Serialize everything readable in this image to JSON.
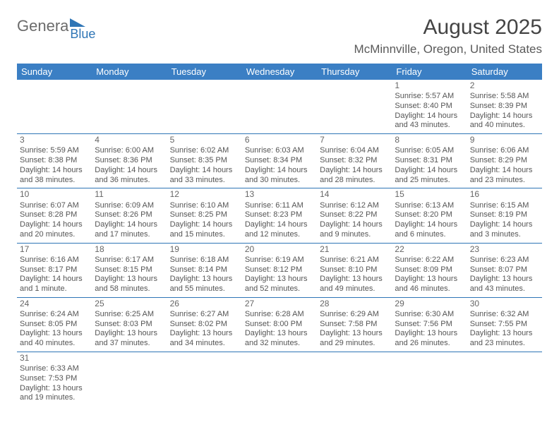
{
  "brand": {
    "word1": "Genera",
    "word2": "Blue",
    "accent_color": "#2e75b6"
  },
  "title": "August 2025",
  "location": "McMinnville, Oregon, United States",
  "header_bg": "#3b7fc4",
  "weekdays": [
    "Sunday",
    "Monday",
    "Tuesday",
    "Wednesday",
    "Thursday",
    "Friday",
    "Saturday"
  ],
  "weeks": [
    [
      null,
      null,
      null,
      null,
      null,
      {
        "d": "1",
        "sr": "5:57 AM",
        "ss": "8:40 PM",
        "dh": "14",
        "dm": "43"
      },
      {
        "d": "2",
        "sr": "5:58 AM",
        "ss": "8:39 PM",
        "dh": "14",
        "dm": "40"
      }
    ],
    [
      {
        "d": "3",
        "sr": "5:59 AM",
        "ss": "8:38 PM",
        "dh": "14",
        "dm": "38"
      },
      {
        "d": "4",
        "sr": "6:00 AM",
        "ss": "8:36 PM",
        "dh": "14",
        "dm": "36"
      },
      {
        "d": "5",
        "sr": "6:02 AM",
        "ss": "8:35 PM",
        "dh": "14",
        "dm": "33"
      },
      {
        "d": "6",
        "sr": "6:03 AM",
        "ss": "8:34 PM",
        "dh": "14",
        "dm": "30"
      },
      {
        "d": "7",
        "sr": "6:04 AM",
        "ss": "8:32 PM",
        "dh": "14",
        "dm": "28"
      },
      {
        "d": "8",
        "sr": "6:05 AM",
        "ss": "8:31 PM",
        "dh": "14",
        "dm": "25"
      },
      {
        "d": "9",
        "sr": "6:06 AM",
        "ss": "8:29 PM",
        "dh": "14",
        "dm": "23"
      }
    ],
    [
      {
        "d": "10",
        "sr": "6:07 AM",
        "ss": "8:28 PM",
        "dh": "14",
        "dm": "20"
      },
      {
        "d": "11",
        "sr": "6:09 AM",
        "ss": "8:26 PM",
        "dh": "14",
        "dm": "17"
      },
      {
        "d": "12",
        "sr": "6:10 AM",
        "ss": "8:25 PM",
        "dh": "14",
        "dm": "15"
      },
      {
        "d": "13",
        "sr": "6:11 AM",
        "ss": "8:23 PM",
        "dh": "14",
        "dm": "12"
      },
      {
        "d": "14",
        "sr": "6:12 AM",
        "ss": "8:22 PM",
        "dh": "14",
        "dm": "9"
      },
      {
        "d": "15",
        "sr": "6:13 AM",
        "ss": "8:20 PM",
        "dh": "14",
        "dm": "6"
      },
      {
        "d": "16",
        "sr": "6:15 AM",
        "ss": "8:19 PM",
        "dh": "14",
        "dm": "3"
      }
    ],
    [
      {
        "d": "17",
        "sr": "6:16 AM",
        "ss": "8:17 PM",
        "dh": "14",
        "dm": "1",
        "singular": true
      },
      {
        "d": "18",
        "sr": "6:17 AM",
        "ss": "8:15 PM",
        "dh": "13",
        "dm": "58"
      },
      {
        "d": "19",
        "sr": "6:18 AM",
        "ss": "8:14 PM",
        "dh": "13",
        "dm": "55"
      },
      {
        "d": "20",
        "sr": "6:19 AM",
        "ss": "8:12 PM",
        "dh": "13",
        "dm": "52"
      },
      {
        "d": "21",
        "sr": "6:21 AM",
        "ss": "8:10 PM",
        "dh": "13",
        "dm": "49"
      },
      {
        "d": "22",
        "sr": "6:22 AM",
        "ss": "8:09 PM",
        "dh": "13",
        "dm": "46"
      },
      {
        "d": "23",
        "sr": "6:23 AM",
        "ss": "8:07 PM",
        "dh": "13",
        "dm": "43"
      }
    ],
    [
      {
        "d": "24",
        "sr": "6:24 AM",
        "ss": "8:05 PM",
        "dh": "13",
        "dm": "40"
      },
      {
        "d": "25",
        "sr": "6:25 AM",
        "ss": "8:03 PM",
        "dh": "13",
        "dm": "37"
      },
      {
        "d": "26",
        "sr": "6:27 AM",
        "ss": "8:02 PM",
        "dh": "13",
        "dm": "34"
      },
      {
        "d": "27",
        "sr": "6:28 AM",
        "ss": "8:00 PM",
        "dh": "13",
        "dm": "32"
      },
      {
        "d": "28",
        "sr": "6:29 AM",
        "ss": "7:58 PM",
        "dh": "13",
        "dm": "29"
      },
      {
        "d": "29",
        "sr": "6:30 AM",
        "ss": "7:56 PM",
        "dh": "13",
        "dm": "26"
      },
      {
        "d": "30",
        "sr": "6:32 AM",
        "ss": "7:55 PM",
        "dh": "13",
        "dm": "23"
      }
    ],
    [
      {
        "d": "31",
        "sr": "6:33 AM",
        "ss": "7:53 PM",
        "dh": "13",
        "dm": "19"
      },
      null,
      null,
      null,
      null,
      null,
      null
    ]
  ],
  "labels": {
    "sunrise": "Sunrise:",
    "sunset": "Sunset:",
    "daylight": "Daylight:"
  }
}
